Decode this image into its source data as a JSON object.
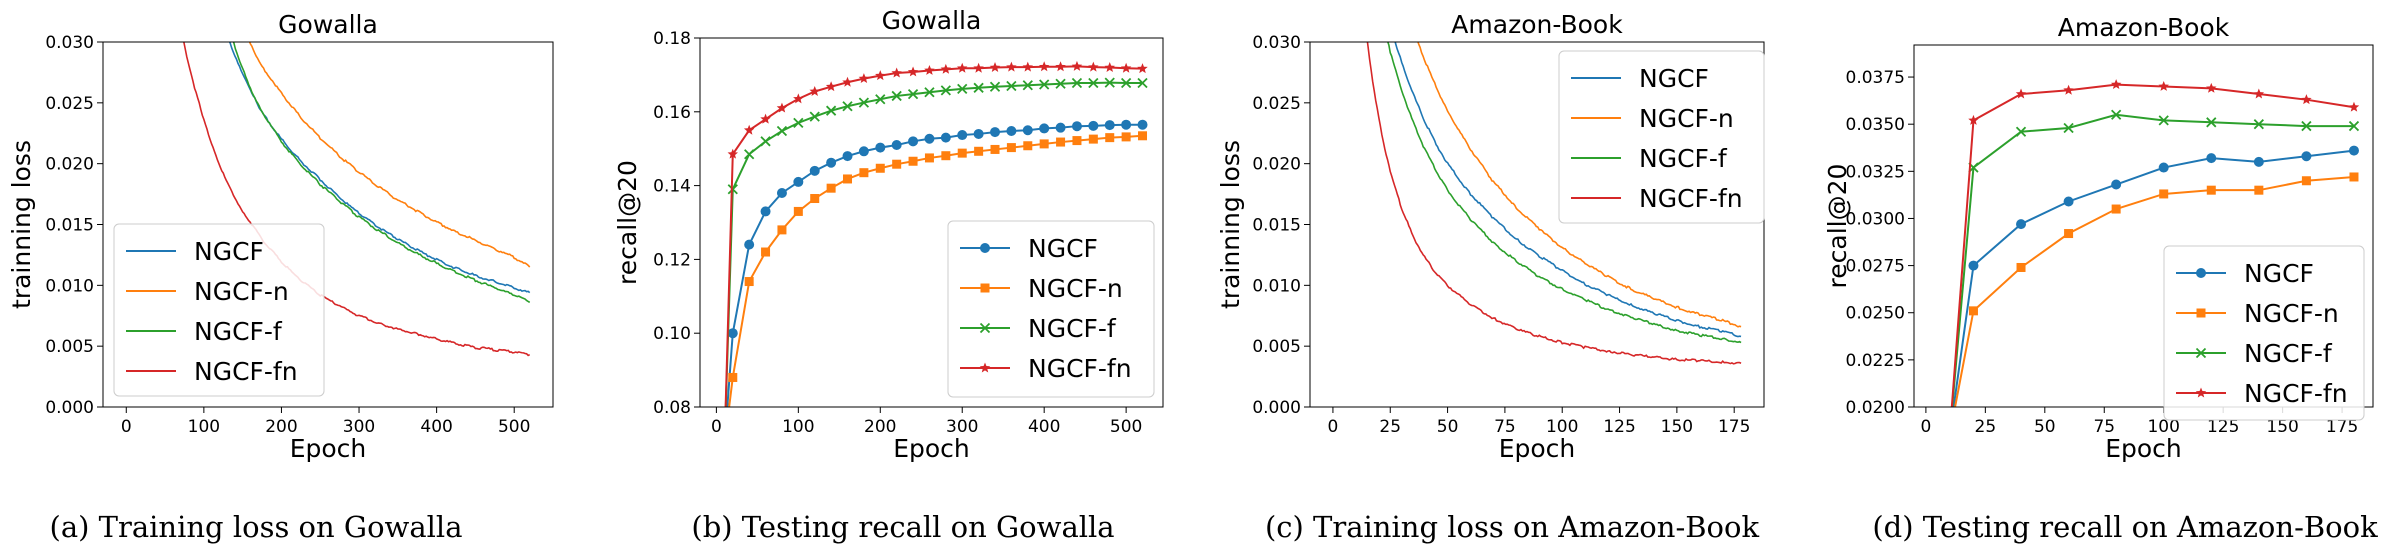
{
  "colors": {
    "NGCF": "#1f77b4",
    "NGCF-n": "#ff7f0e",
    "NGCF-f": "#2ca02c",
    "NGCF-fn": "#d62728"
  },
  "captions": [
    "(a)  Training loss on Gowalla",
    "(b)  Testing recall on Gowalla",
    "(c)  Training loss on Amazon-Book",
    "(d)  Testing recall on Amazon-Book"
  ],
  "chart_data": [
    {
      "type": "line",
      "title": "Gowalla",
      "xlabel": "Epoch",
      "ylabel": "trainning loss",
      "xlim": [
        -30,
        550
      ],
      "ylim": [
        0,
        0.03
      ],
      "xticks": [
        0,
        100,
        200,
        300,
        400,
        500
      ],
      "xtick_labels": [
        "0",
        "100",
        "200",
        "300",
        "400",
        "500"
      ],
      "yticks": [
        0,
        0.005,
        0.01,
        0.015,
        0.02,
        0.025,
        0.03
      ],
      "ytick_labels": [
        "0.000",
        "0.005",
        "0.010",
        "0.015",
        "0.020",
        "0.025",
        "0.030"
      ],
      "legend": "lower-left",
      "grid": false,
      "series": [
        {
          "name": "NGCF",
          "x": [
            130,
            140,
            150,
            160,
            175,
            200,
            225,
            250,
            275,
            300,
            325,
            350,
            375,
            400,
            425,
            450,
            475,
            500,
            520
          ],
          "values": [
            0.0305,
            0.0288,
            0.0273,
            0.026,
            0.0242,
            0.022,
            0.0202,
            0.0187,
            0.0172,
            0.0159,
            0.0148,
            0.0138,
            0.0129,
            0.0121,
            0.0114,
            0.0108,
            0.0103,
            0.0098,
            0.0094
          ]
        },
        {
          "name": "NGCF-n",
          "x": [
            155,
            160,
            175,
            200,
            225,
            250,
            275,
            300,
            325,
            350,
            375,
            400,
            425,
            450,
            475,
            500,
            520
          ],
          "values": [
            0.0307,
            0.0298,
            0.028,
            0.0258,
            0.0238,
            0.0221,
            0.0206,
            0.0193,
            0.0181,
            0.017,
            0.0161,
            0.0152,
            0.0144,
            0.0137,
            0.013,
            0.0123,
            0.0115
          ]
        },
        {
          "name": "NGCF-f",
          "x": [
            135,
            150,
            160,
            175,
            200,
            225,
            250,
            275,
            300,
            325,
            350,
            375,
            400,
            425,
            450,
            475,
            500,
            520
          ],
          "values": [
            0.0305,
            0.0278,
            0.0262,
            0.0243,
            0.0218,
            0.0199,
            0.0183,
            0.0169,
            0.0156,
            0.0145,
            0.0135,
            0.0126,
            0.0118,
            0.0111,
            0.0104,
            0.0098,
            0.0092,
            0.0086
          ]
        },
        {
          "name": "NGCF-fn",
          "x": [
            70,
            80,
            90,
            100,
            110,
            125,
            140,
            150,
            175,
            200,
            225,
            250,
            275,
            300,
            325,
            350,
            375,
            400,
            425,
            450,
            475,
            500,
            520
          ],
          "values": [
            0.0312,
            0.0282,
            0.0258,
            0.0236,
            0.0216,
            0.0192,
            0.0172,
            0.0161,
            0.0138,
            0.0119,
            0.0104,
            0.0092,
            0.0083,
            0.0075,
            0.0069,
            0.0064,
            0.006,
            0.0056,
            0.0052,
            0.0049,
            0.0047,
            0.0045,
            0.0043
          ]
        }
      ]
    },
    {
      "type": "line",
      "title": "Gowalla",
      "xlabel": "Epoch",
      "ylabel": "recall@20",
      "xlim": [
        -20,
        545
      ],
      "ylim": [
        0.08,
        0.18
      ],
      "xticks": [
        0,
        100,
        200,
        300,
        400,
        500
      ],
      "xtick_labels": [
        "0",
        "100",
        "200",
        "300",
        "400",
        "500"
      ],
      "yticks": [
        0.08,
        0.1,
        0.12,
        0.14,
        0.16,
        0.18
      ],
      "ytick_labels": [
        "0.08",
        "0.10",
        "0.12",
        "0.14",
        "0.16",
        "0.18"
      ],
      "legend": "lower-right",
      "grid": false,
      "series": [
        {
          "name": "NGCF",
          "marker": "circle",
          "x": [
            10,
            20,
            40,
            60,
            80,
            100,
            120,
            140,
            160,
            180,
            200,
            220,
            240,
            260,
            280,
            300,
            320,
            340,
            360,
            380,
            400,
            420,
            440,
            460,
            480,
            500,
            520
          ],
          "values": [
            0.07,
            0.1,
            0.124,
            0.133,
            0.138,
            0.141,
            0.144,
            0.1462,
            0.148,
            0.1493,
            0.1503,
            0.151,
            0.152,
            0.1527,
            0.153,
            0.1537,
            0.154,
            0.1545,
            0.1548,
            0.155,
            0.1555,
            0.1557,
            0.1561,
            0.1562,
            0.1564,
            0.1565,
            0.1565
          ]
        },
        {
          "name": "NGCF-n",
          "marker": "square",
          "x": [
            10,
            20,
            40,
            60,
            80,
            100,
            120,
            140,
            160,
            180,
            200,
            220,
            240,
            260,
            280,
            300,
            320,
            340,
            360,
            380,
            400,
            420,
            440,
            460,
            480,
            500,
            520
          ],
          "values": [
            0.07,
            0.088,
            0.114,
            0.122,
            0.128,
            0.133,
            0.1365,
            0.1393,
            0.1418,
            0.1435,
            0.1447,
            0.1458,
            0.1466,
            0.1475,
            0.1481,
            0.1488,
            0.1493,
            0.1498,
            0.1503,
            0.1508,
            0.1513,
            0.1518,
            0.1522,
            0.1526,
            0.153,
            0.1532,
            0.1535
          ]
        },
        {
          "name": "NGCF-f",
          "marker": "x",
          "x": [
            10,
            20,
            40,
            60,
            80,
            100,
            120,
            140,
            160,
            180,
            200,
            220,
            240,
            260,
            280,
            300,
            320,
            340,
            360,
            380,
            400,
            420,
            440,
            460,
            480,
            500,
            520
          ],
          "values": [
            0.07,
            0.139,
            0.1485,
            0.152,
            0.1548,
            0.157,
            0.1587,
            0.1603,
            0.1615,
            0.1625,
            0.1634,
            0.1643,
            0.1648,
            0.1653,
            0.1658,
            0.1662,
            0.1665,
            0.1668,
            0.167,
            0.1672,
            0.1674,
            0.1676,
            0.1678,
            0.1678,
            0.1679,
            0.1678,
            0.1678
          ]
        },
        {
          "name": "NGCF-fn",
          "marker": "star",
          "x": [
            10,
            20,
            40,
            60,
            80,
            100,
            120,
            140,
            160,
            180,
            200,
            220,
            240,
            260,
            280,
            300,
            320,
            340,
            360,
            380,
            400,
            420,
            440,
            460,
            480,
            500,
            520
          ],
          "values": [
            0.07,
            0.1485,
            0.155,
            0.158,
            0.161,
            0.1635,
            0.1655,
            0.1668,
            0.168,
            0.169,
            0.1698,
            0.1705,
            0.1708,
            0.1712,
            0.1715,
            0.1718,
            0.1718,
            0.172,
            0.1721,
            0.1721,
            0.1722,
            0.1722,
            0.1723,
            0.1721,
            0.172,
            0.1718,
            0.1717
          ]
        }
      ]
    },
    {
      "type": "line",
      "title": "Amazon-Book",
      "xlabel": "Epoch",
      "ylabel": "trainning loss",
      "xlim": [
        -10,
        188
      ],
      "ylim": [
        0,
        0.03
      ],
      "xticks": [
        0,
        25,
        50,
        75,
        100,
        125,
        150,
        175
      ],
      "xtick_labels": [
        "0",
        "25",
        "50",
        "75",
        "100",
        "125",
        "150",
        "175"
      ],
      "yticks": [
        0,
        0.005,
        0.01,
        0.015,
        0.02,
        0.025,
        0.03
      ],
      "ytick_labels": [
        "0.000",
        "0.005",
        "0.010",
        "0.015",
        "0.020",
        "0.025",
        "0.030"
      ],
      "legend": "top-right",
      "grid": false,
      "series": [
        {
          "name": "NGCF",
          "x": [
            25,
            28,
            30,
            35,
            40,
            45,
            50,
            60,
            70,
            80,
            90,
            100,
            110,
            120,
            130,
            140,
            150,
            160,
            170,
            178
          ],
          "values": [
            0.0315,
            0.0295,
            0.0283,
            0.0257,
            0.0235,
            0.0216,
            0.02,
            0.0175,
            0.0155,
            0.0138,
            0.0124,
            0.0112,
            0.0101,
            0.0092,
            0.0084,
            0.0077,
            0.0071,
            0.0066,
            0.0062,
            0.0058
          ]
        },
        {
          "name": "NGCF-n",
          "x": [
            35,
            38,
            40,
            45,
            50,
            55,
            60,
            70,
            80,
            90,
            100,
            110,
            120,
            130,
            140,
            150,
            160,
            170,
            178
          ],
          "values": [
            0.031,
            0.0295,
            0.0285,
            0.0263,
            0.0243,
            0.0227,
            0.0212,
            0.0185,
            0.0164,
            0.0146,
            0.0131,
            0.0118,
            0.0107,
            0.0097,
            0.0089,
            0.0082,
            0.0076,
            0.0071,
            0.0066
          ]
        },
        {
          "name": "NGCF-f",
          "x": [
            22,
            25,
            28,
            30,
            35,
            40,
            45,
            50,
            60,
            70,
            80,
            90,
            100,
            110,
            120,
            130,
            140,
            150,
            160,
            170,
            178
          ],
          "values": [
            0.0315,
            0.0292,
            0.0272,
            0.026,
            0.0234,
            0.0212,
            0.0194,
            0.0178,
            0.0154,
            0.0135,
            0.012,
            0.0107,
            0.0097,
            0.0088,
            0.008,
            0.0074,
            0.0068,
            0.0063,
            0.0059,
            0.0056,
            0.0053
          ]
        },
        {
          "name": "NGCF-fn",
          "x": [
            14,
            16,
            18,
            20,
            22,
            25,
            30,
            35,
            40,
            45,
            50,
            60,
            70,
            80,
            90,
            100,
            110,
            120,
            130,
            140,
            150,
            160,
            170,
            178
          ],
          "values": [
            0.0315,
            0.0285,
            0.026,
            0.0237,
            0.0218,
            0.0193,
            0.0163,
            0.014,
            0.0123,
            0.011,
            0.01,
            0.0084,
            0.0073,
            0.0064,
            0.0058,
            0.0053,
            0.0049,
            0.0046,
            0.0043,
            0.0041,
            0.0039,
            0.0038,
            0.0037,
            0.0036
          ]
        }
      ]
    },
    {
      "type": "line",
      "title": "Amazon-Book",
      "xlabel": "Epoch",
      "ylabel": "recall@20",
      "xlim": [
        -5,
        188
      ],
      "ylim": [
        0.02,
        0.0392
      ],
      "xticks": [
        0,
        25,
        50,
        75,
        100,
        125,
        150,
        175
      ],
      "xtick_labels": [
        "0",
        "25",
        "50",
        "75",
        "100",
        "125",
        "150",
        "175"
      ],
      "yticks": [
        0.02,
        0.0225,
        0.025,
        0.0275,
        0.03,
        0.0325,
        0.035,
        0.0375
      ],
      "ytick_labels": [
        "0.0200",
        "0.0225",
        "0.0250",
        "0.0275",
        "0.0300",
        "0.0325",
        "0.0350",
        "0.0375"
      ],
      "legend": "lower-right",
      "grid": false,
      "series": [
        {
          "name": "NGCF",
          "marker": "circle",
          "x": [
            10,
            20,
            40,
            60,
            80,
            100,
            120,
            140,
            160,
            180
          ],
          "values": [
            0.0185,
            0.0275,
            0.0297,
            0.0309,
            0.0318,
            0.0327,
            0.0332,
            0.033,
            0.0333,
            0.0336
          ]
        },
        {
          "name": "NGCF-n",
          "marker": "square",
          "x": [
            10,
            20,
            40,
            60,
            80,
            100,
            120,
            140,
            160,
            180
          ],
          "values": [
            0.0185,
            0.0251,
            0.0274,
            0.0292,
            0.0305,
            0.0313,
            0.0315,
            0.0315,
            0.032,
            0.0322
          ]
        },
        {
          "name": "NGCF-f",
          "marker": "x",
          "x": [
            10,
            20,
            40,
            60,
            80,
            100,
            120,
            140,
            160,
            180
          ],
          "values": [
            0.0185,
            0.0327,
            0.0346,
            0.0348,
            0.0355,
            0.0352,
            0.0351,
            0.035,
            0.0349,
            0.0349
          ]
        },
        {
          "name": "NGCF-fn",
          "marker": "star",
          "x": [
            10,
            20,
            40,
            60,
            80,
            100,
            120,
            140,
            160,
            180
          ],
          "values": [
            0.0185,
            0.0352,
            0.0366,
            0.0368,
            0.0371,
            0.037,
            0.0369,
            0.0366,
            0.0363,
            0.0359
          ]
        }
      ]
    }
  ]
}
